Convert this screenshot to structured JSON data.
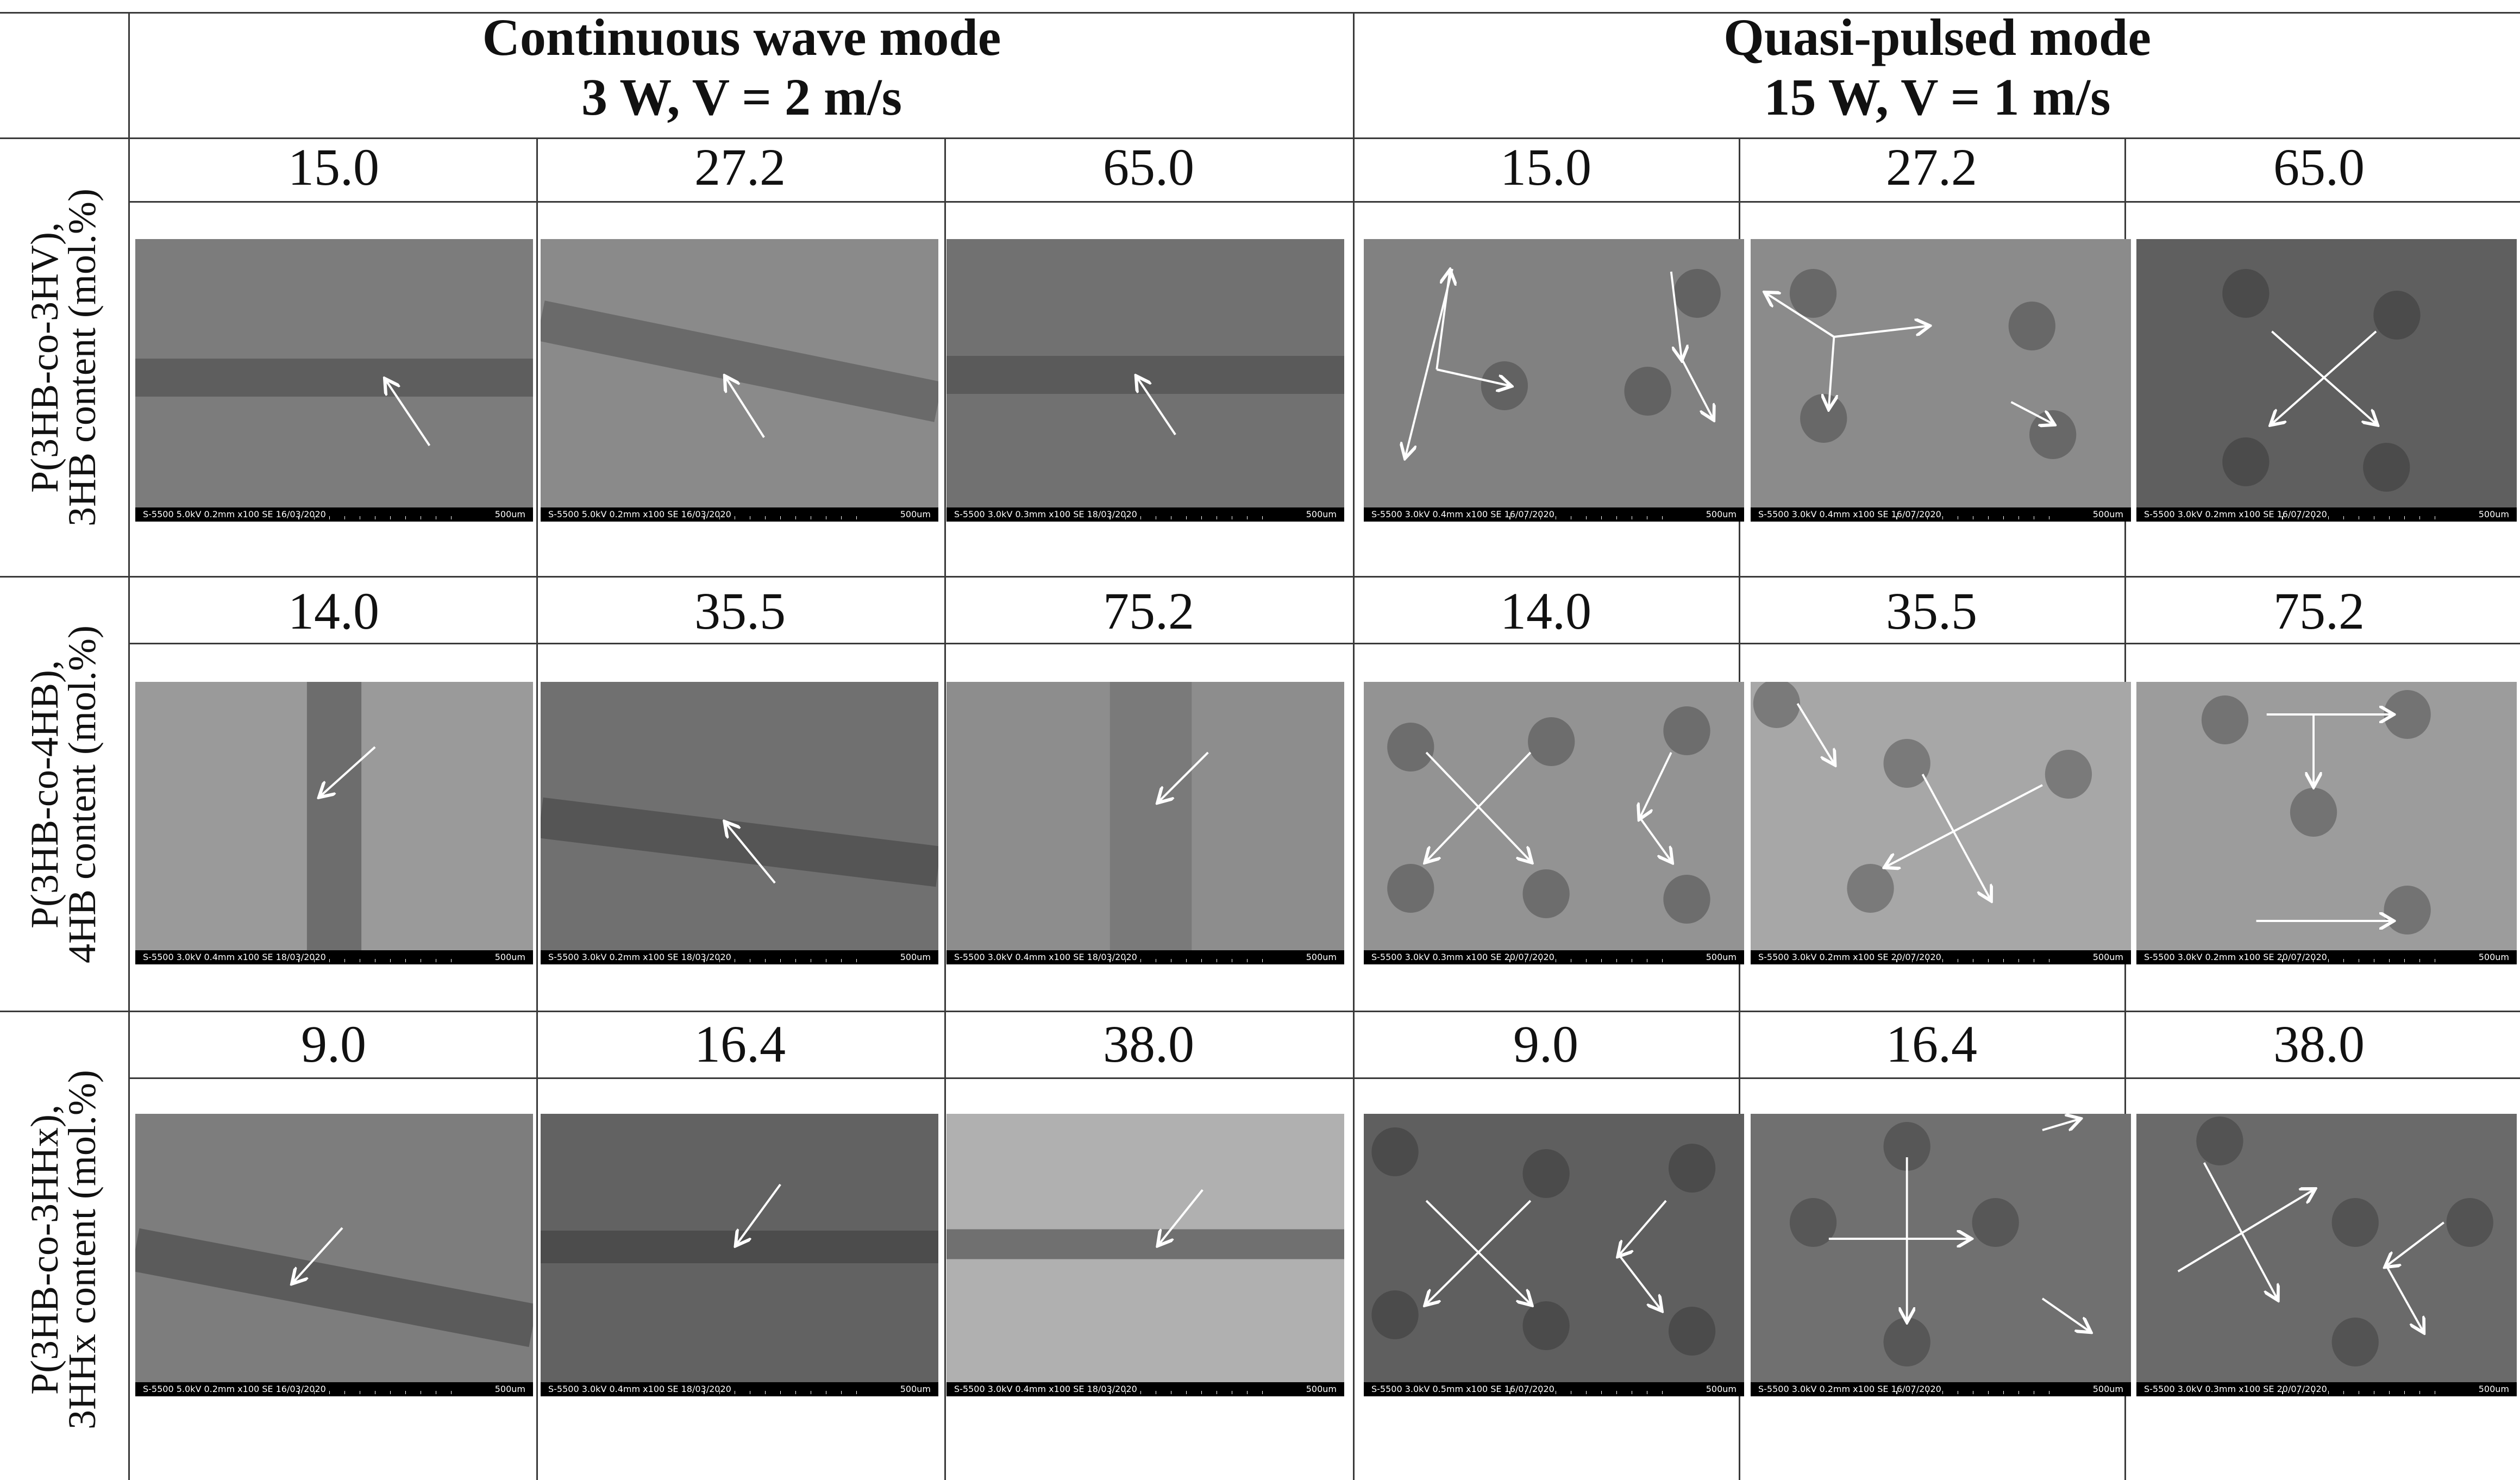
{
  "columns": [
    {
      "title_line1": "Continuous wave mode",
      "title_line2": "3 W, V = 2 m/s"
    },
    {
      "title_line1": "Quasi-pulsed mode",
      "title_line2": "15 W, V = 1 m/s"
    }
  ],
  "rows": [
    {
      "label_line1": "P(3HB-co-3HV),",
      "label_line2": "3HB content (mol.%)",
      "values": [
        "15.0",
        "27.2",
        "65.0",
        "15.0",
        "27.2",
        "65.0"
      ],
      "captions": [
        {
          "left": "S-5500 5.0kV 0.2mm x100 SE 16/03/2020",
          "right": "500um"
        },
        {
          "left": "S-5500 5.0kV 0.2mm x100 SE 16/03/2020",
          "right": "500um"
        },
        {
          "left": "S-5500 3.0kV 0.3mm x100 SE 18/03/2020",
          "right": "500um"
        },
        {
          "left": "S-5500 3.0kV 0.4mm x100 SE 16/07/2020",
          "right": "500um"
        },
        {
          "left": "S-5500 3.0kV 0.4mm x100 SE 16/07/2020",
          "right": "500um"
        },
        {
          "left": "S-5500 3.0kV 0.2mm x100 SE 16/07/2020",
          "right": "500um"
        }
      ]
    },
    {
      "label_line1": "P(3HB-co-4HB),",
      "label_line2": "4HB content (mol.%)",
      "values": [
        "14.0",
        "35.5",
        "75.2",
        "14.0",
        "35.5",
        "75.2"
      ],
      "captions": [
        {
          "left": "S-5500 3.0kV 0.4mm x100 SE 18/03/2020",
          "right": "500um"
        },
        {
          "left": "S-5500 3.0kV 0.2mm x100 SE 18/03/2020",
          "right": "500um"
        },
        {
          "left": "S-5500 3.0kV 0.4mm x100 SE 18/03/2020",
          "right": "500um"
        },
        {
          "left": "S-5500 3.0kV 0.3mm x100 SE 20/07/2020",
          "right": "500um"
        },
        {
          "left": "S-5500 3.0kV 0.2mm x100 SE 20/07/2020",
          "right": "500um"
        },
        {
          "left": "S-5500 3.0kV 0.2mm x100 SE 20/07/2020",
          "right": "500um"
        }
      ]
    },
    {
      "label_line1": "P(3HB-co-3HHx),",
      "label_line2": "3HHx content (mol.%)",
      "values": [
        "9.0",
        "16.4",
        "38.0",
        "9.0",
        "16.4",
        "38.0"
      ],
      "captions": [
        {
          "left": "S-5500 5.0kV 0.2mm x100 SE 16/03/2020",
          "right": "500um"
        },
        {
          "left": "S-5500 3.0kV 0.4mm x100 SE 18/03/2020",
          "right": "500um"
        },
        {
          "left": "S-5500 3.0kV 0.4mm x100 SE 18/03/2020",
          "right": "500um"
        },
        {
          "left": "S-5500 3.0kV 0.5mm x100 SE 16/07/2020",
          "right": "500um"
        },
        {
          "left": "S-5500 3.0kV 0.2mm x100 SE 16/07/2020",
          "right": "500um"
        },
        {
          "left": "S-5500 3.0kV 0.3mm x100 SE 20/07/2020",
          "right": "500um"
        }
      ]
    }
  ]
}
